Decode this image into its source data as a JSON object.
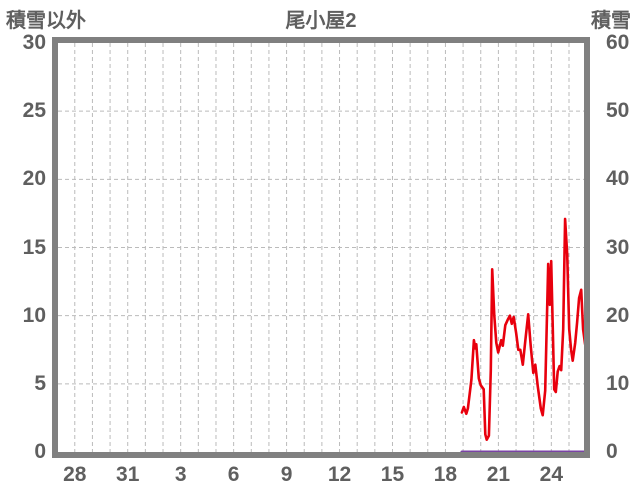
{
  "chart_data": {
    "type": "line",
    "title": "尾小屋2",
    "background_color": "#ffffff",
    "frame_color": "#808080",
    "grid_color": "#bbbbbb",
    "text_color": "#5f5f5f",
    "legend": "none",
    "grid": "dashed, vertical every 1 day, horizontal every left-axis 5 units",
    "left_axis": {
      "label": "積雪以外",
      "min": 0,
      "max": 30,
      "ticks": [
        30,
        25,
        20,
        15,
        10,
        5,
        0
      ]
    },
    "right_axis": {
      "label": "積雪",
      "min": 0,
      "max": 60,
      "ticks": [
        60,
        50,
        40,
        30,
        20,
        10,
        0
      ]
    },
    "x_axis": {
      "tick_labels": [
        "28",
        "31",
        "3",
        "6",
        "9",
        "12",
        "15",
        "18",
        "21",
        "24"
      ],
      "tick_days": [
        0,
        3,
        6,
        9,
        12,
        15,
        18,
        21,
        24,
        27
      ],
      "domain_days": [
        -0.95,
        28.85
      ],
      "gridline_every_days": 1
    },
    "series": [
      {
        "name": "積雪以外",
        "axis": "left",
        "color": "#e8000d",
        "stroke_width": 2.6,
        "points": [
          [
            21.93,
            2.9
          ],
          [
            22.04,
            3.3
          ],
          [
            22.18,
            2.8
          ],
          [
            22.27,
            3.2
          ],
          [
            22.47,
            5.3
          ],
          [
            22.61,
            8.2
          ],
          [
            22.69,
            7.6
          ],
          [
            22.75,
            7.9
          ],
          [
            22.89,
            5.4
          ],
          [
            23.0,
            4.9
          ],
          [
            23.17,
            4.6
          ],
          [
            23.26,
            1.3
          ],
          [
            23.34,
            0.9
          ],
          [
            23.46,
            1.2
          ],
          [
            23.57,
            6.0
          ],
          [
            23.65,
            13.4
          ],
          [
            23.77,
            10.0
          ],
          [
            23.88,
            8.0
          ],
          [
            23.99,
            7.3
          ],
          [
            24.16,
            8.2
          ],
          [
            24.25,
            7.8
          ],
          [
            24.39,
            9.3
          ],
          [
            24.53,
            9.7
          ],
          [
            24.65,
            10.0
          ],
          [
            24.76,
            9.4
          ],
          [
            24.87,
            9.9
          ],
          [
            25.01,
            8.7
          ],
          [
            25.13,
            7.5
          ],
          [
            25.24,
            7.5
          ],
          [
            25.38,
            6.4
          ],
          [
            25.55,
            8.5
          ],
          [
            25.69,
            10.1
          ],
          [
            25.83,
            7.8
          ],
          [
            25.98,
            5.8
          ],
          [
            26.09,
            6.4
          ],
          [
            26.23,
            4.8
          ],
          [
            26.4,
            3.2
          ],
          [
            26.51,
            2.7
          ],
          [
            26.65,
            4.5
          ],
          [
            26.77,
            11.0
          ],
          [
            26.82,
            13.8
          ],
          [
            26.91,
            10.8
          ],
          [
            26.99,
            14.0
          ],
          [
            27.08,
            9.0
          ],
          [
            27.16,
            4.6
          ],
          [
            27.25,
            4.4
          ],
          [
            27.36,
            5.9
          ],
          [
            27.47,
            6.3
          ],
          [
            27.56,
            6.0
          ],
          [
            27.67,
            9.0
          ],
          [
            27.78,
            17.1
          ],
          [
            27.9,
            14.5
          ],
          [
            28.01,
            9.0
          ],
          [
            28.12,
            7.5
          ],
          [
            28.21,
            6.7
          ],
          [
            28.35,
            8.0
          ],
          [
            28.46,
            9.5
          ],
          [
            28.57,
            11.3
          ],
          [
            28.69,
            11.9
          ],
          [
            28.8,
            9.0
          ],
          [
            28.91,
            7.9
          ],
          [
            29.0,
            8.2
          ],
          [
            29.08,
            7.1
          ]
        ]
      },
      {
        "name": "積雪",
        "axis": "right",
        "color": "#7a42a5",
        "stroke_width": 3,
        "points": [
          [
            21.93,
            0
          ],
          [
            29.05,
            0
          ]
        ]
      }
    ]
  }
}
